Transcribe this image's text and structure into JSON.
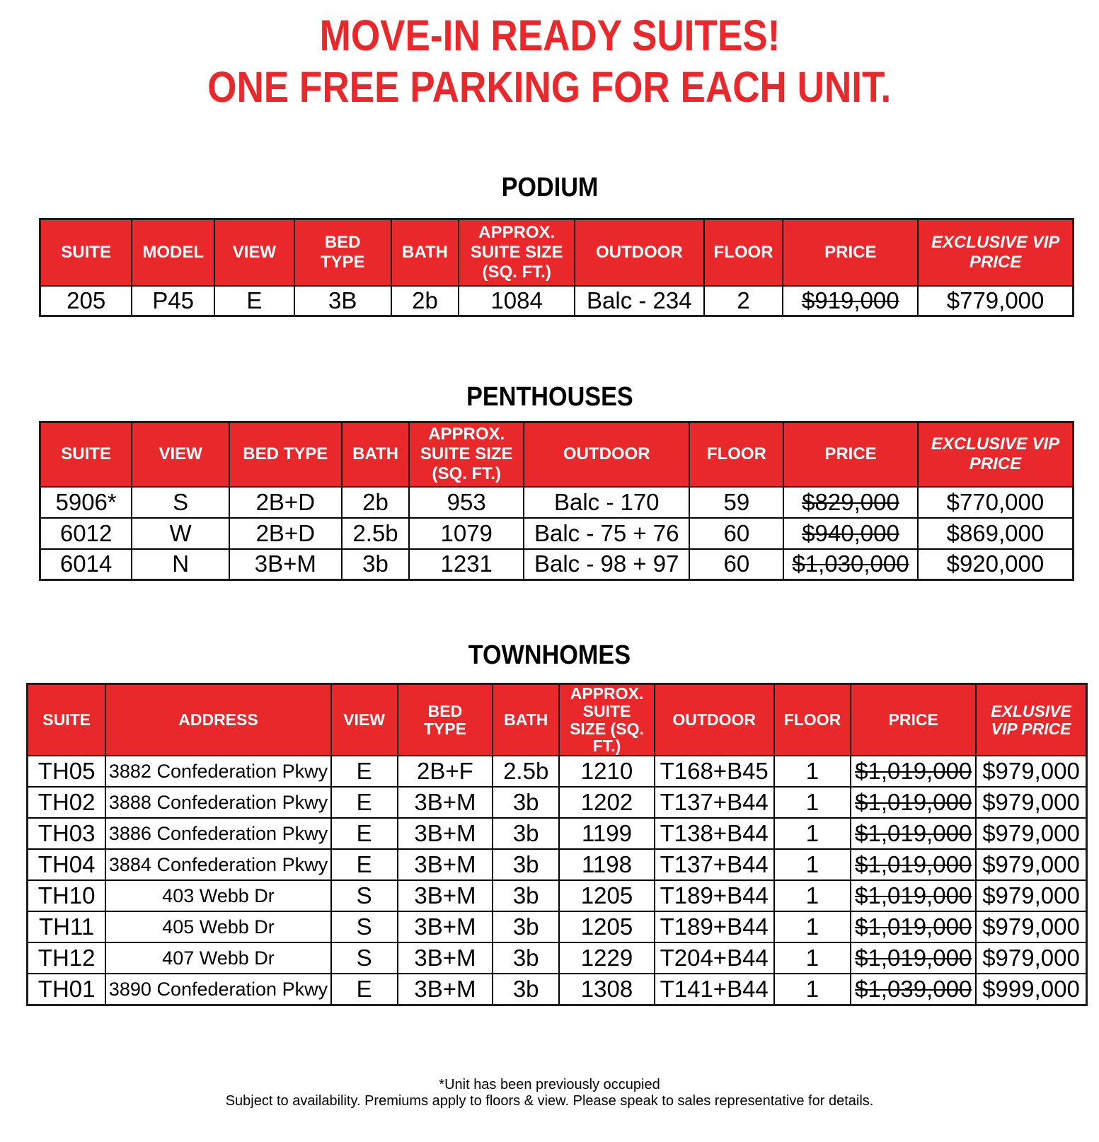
{
  "title": {
    "line1": "MOVE-IN READY SUITES!",
    "line2": "ONE FREE PARKING FOR EACH UNIT."
  },
  "colors": {
    "accent_red": "#E9282C",
    "header_text": "#FFFFFF",
    "body_text": "#000000"
  },
  "sections": [
    {
      "heading": "PODIUM",
      "columns": [
        "SUITE",
        "MODEL",
        "VIEW",
        "BED\nTYPE",
        "BATH",
        "APPROX.\nSUITE SIZE\n(SQ. FT.)",
        "OUTDOOR",
        "FLOOR",
        "PRICE",
        "EXCLUSIVE VIP\nPRICE"
      ],
      "price_col": 8,
      "rows": [
        [
          "205",
          "P45",
          "E",
          "3B",
          "2b",
          "1084",
          "Balc - 234",
          "2",
          "$919,000",
          "$779,000"
        ]
      ]
    },
    {
      "heading": "PENTHOUSES",
      "columns": [
        "SUITE",
        "VIEW",
        "BED TYPE",
        "BATH",
        "APPROX.\nSUITE SIZE\n(SQ. FT.)",
        "OUTDOOR",
        "FLOOR",
        "PRICE",
        "EXCLUSIVE VIP\nPRICE"
      ],
      "price_col": 7,
      "rows": [
        [
          "5906*",
          "S",
          "2B+D",
          "2b",
          "953",
          "Balc - 170",
          "59",
          "$829,000",
          "$770,000"
        ],
        [
          "6012",
          "W",
          "2B+D",
          "2.5b",
          "1079",
          "Balc - 75 + 76",
          "60",
          "$940,000",
          "$869,000"
        ],
        [
          "6014",
          "N",
          "3B+M",
          "3b",
          "1231",
          "Balc - 98 + 97",
          "60",
          "$1,030,000",
          "$920,000"
        ]
      ]
    },
    {
      "heading": "TOWNHOMES",
      "columns": [
        "SUITE",
        "ADDRESS",
        "VIEW",
        "BED\nTYPE",
        "BATH",
        "APPROX.\nSUITE\nSIZE (SQ.\nFT.)",
        "OUTDOOR",
        "FLOOR",
        "PRICE",
        "EXLUSIVE\nVIP PRICE"
      ],
      "price_col": 8,
      "rows": [
        [
          "TH05",
          "3882 Confederation Pkwy",
          "E",
          "2B+F",
          "2.5b",
          "1210",
          "T168+B45",
          "1",
          "$1,019,000",
          "$979,000"
        ],
        [
          "TH02",
          "3888 Confederation Pkwy",
          "E",
          "3B+M",
          "3b",
          "1202",
          "T137+B44",
          "1",
          "$1,019,000",
          "$979,000"
        ],
        [
          "TH03",
          "3886 Confederation Pkwy",
          "E",
          "3B+M",
          "3b",
          "1199",
          "T138+B44",
          "1",
          "$1,019,000",
          "$979,000"
        ],
        [
          "TH04",
          "3884 Confederation Pkwy",
          "E",
          "3B+M",
          "3b",
          "1198",
          "T137+B44",
          "1",
          "$1,019,000",
          "$979,000"
        ],
        [
          "TH10",
          "403 Webb Dr",
          "S",
          "3B+M",
          "3b",
          "1205",
          "T189+B44",
          "1",
          "$1,019,000",
          "$979,000"
        ],
        [
          "TH11",
          "405 Webb Dr",
          "S",
          "3B+M",
          "3b",
          "1205",
          "T189+B44",
          "1",
          "$1,019,000",
          "$979,000"
        ],
        [
          "TH12",
          "407 Webb Dr",
          "S",
          "3B+M",
          "3b",
          "1229",
          "T204+B44",
          "1",
          "$1,019,000",
          "$979,000"
        ],
        [
          "TH01",
          "3890 Confederation Pkwy",
          "E",
          "3B+M",
          "3b",
          "1308",
          "T141+B44",
          "1",
          "$1,039,000",
          "$999,000"
        ]
      ]
    }
  ],
  "footnotes": [
    "*Unit has been previously occupied",
    "Subject to availability. Premiums apply to floors & view. Please speak to sales representative for details."
  ]
}
